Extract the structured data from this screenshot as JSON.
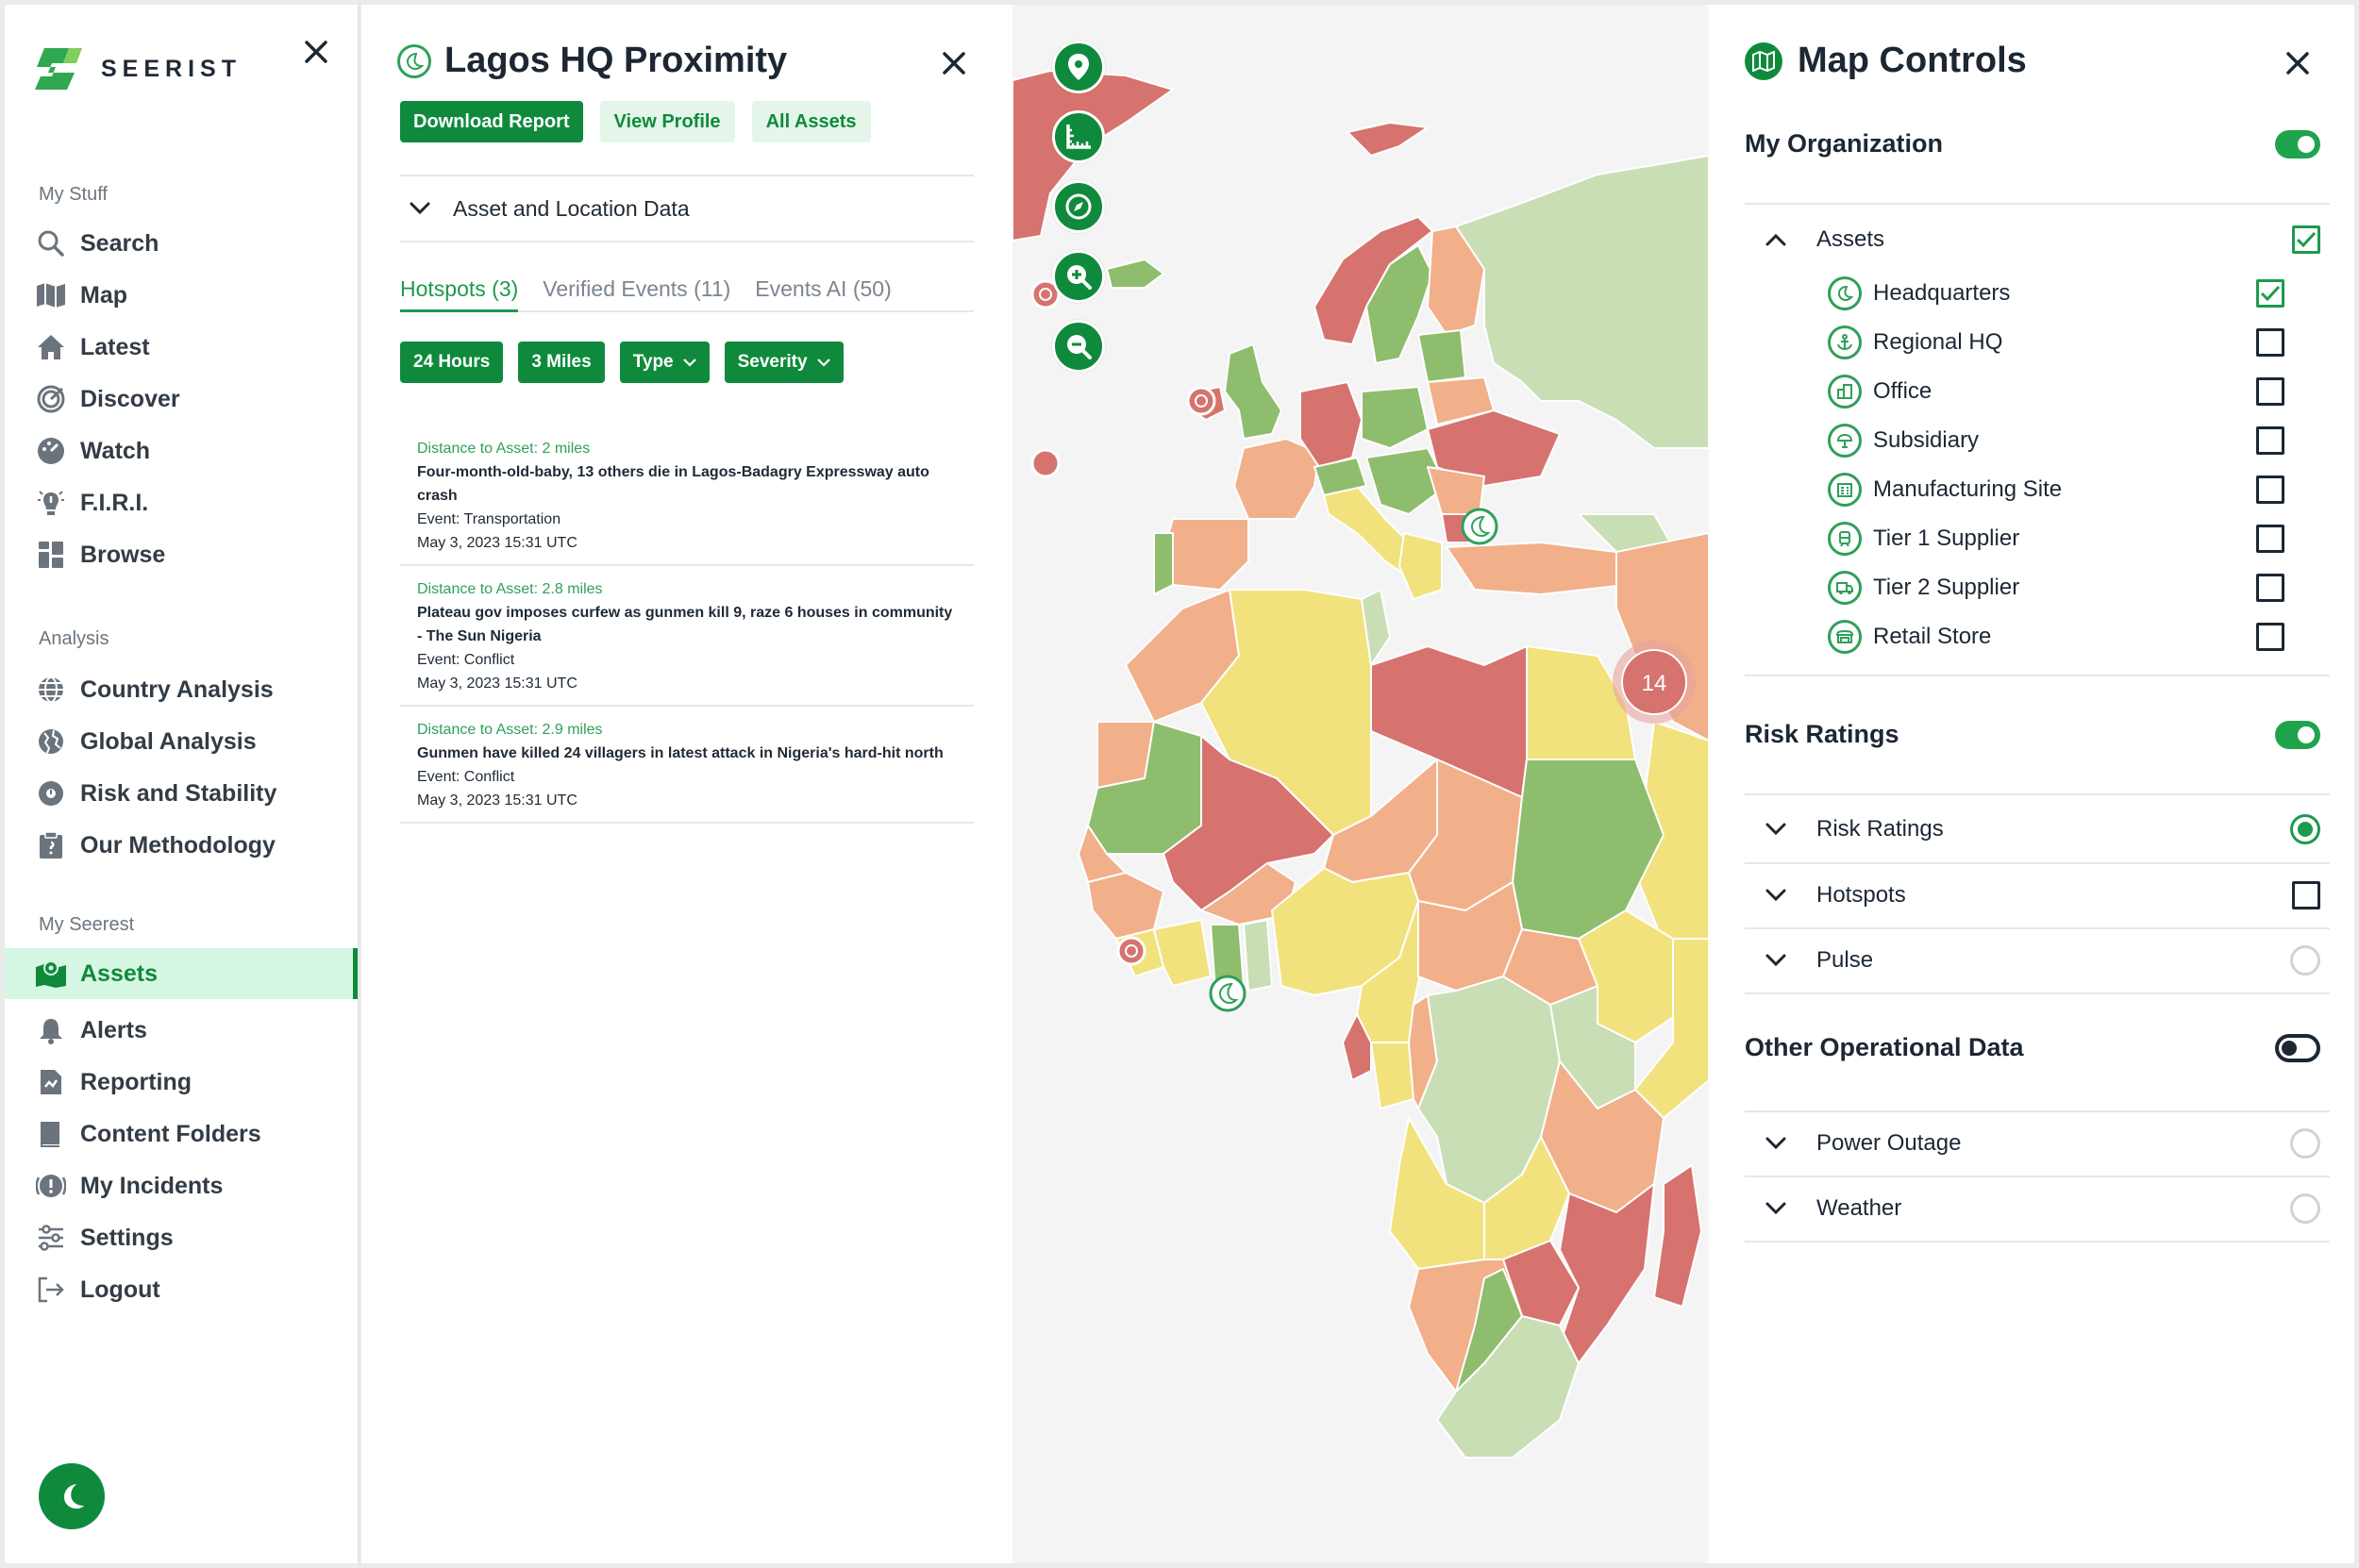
{
  "brand": {
    "name": "SEERIST"
  },
  "nav": {
    "sections": [
      {
        "title": "My Stuff",
        "items": [
          {
            "label": "Search",
            "icon": "search-icon"
          },
          {
            "label": "Map",
            "icon": "map-icon"
          },
          {
            "label": "Latest",
            "icon": "home-icon"
          },
          {
            "label": "Discover",
            "icon": "radar-icon"
          },
          {
            "label": "Watch",
            "icon": "dashboard-icon"
          },
          {
            "label": "F.I.R.I.",
            "icon": "alert-bulb-icon"
          },
          {
            "label": "Browse",
            "icon": "grid-icon"
          }
        ]
      },
      {
        "title": "Analysis",
        "items": [
          {
            "label": "Country Analysis",
            "icon": "globe-icon"
          },
          {
            "label": "Global Analysis",
            "icon": "globe-grid-icon"
          },
          {
            "label": "Risk and Stability",
            "icon": "globe-risk-icon"
          },
          {
            "label": "Our Methodology",
            "icon": "clipboard-icon"
          }
        ]
      },
      {
        "title": "My Seerest",
        "items": [
          {
            "label": "Assets",
            "icon": "assets-map-icon",
            "active": true
          },
          {
            "label": "Alerts",
            "icon": "bell-icon"
          },
          {
            "label": "Reporting",
            "icon": "report-icon"
          },
          {
            "label": "Content Folders",
            "icon": "folder-icon"
          },
          {
            "label": "My Incidents",
            "icon": "incident-icon"
          },
          {
            "label": "Settings",
            "icon": "sliders-icon"
          },
          {
            "label": "Logout",
            "icon": "logout-icon"
          }
        ]
      }
    ]
  },
  "detail": {
    "title": "Lagos HQ Proximity",
    "buttons": {
      "download": "Download Report",
      "profile": "View Profile",
      "assets": "All Assets"
    },
    "accordion": "Asset and Location Data",
    "tabs": [
      {
        "label": "Hotspots (3)",
        "active": true
      },
      {
        "label": "Verified Events (11)",
        "active": false
      },
      {
        "label": "Events AI (50)",
        "active": false
      }
    ],
    "filters": {
      "time": "24 Hours",
      "distance": "3 Miles",
      "type": "Type",
      "severity": "Severity"
    },
    "events": [
      {
        "distance": "Distance to Asset: 2 miles",
        "title": "Four-month-old-baby, 13 others die in Lagos-Badagry Expressway auto crash",
        "event": "Event: Transportation",
        "date": "May 3, 2023 15:31 UTC"
      },
      {
        "distance": "Distance to Asset: 2.8 miles",
        "title": "Plateau gov imposes curfew as gunmen kill 9, raze 6 houses in community - The Sun Nigeria",
        "event": "Event: Conflict",
        "date": "May 3, 2023 15:31 UTC"
      },
      {
        "distance": "Distance to Asset: 2.9 miles",
        "title": "Gunmen have killed 24 villagers in latest attack in Nigeria's hard-hit north",
        "event": "Event: Conflict",
        "date": "May 3, 2023 15:31 UTC"
      }
    ]
  },
  "map": {
    "cluster_count": "14",
    "tools": [
      "location-pin-icon",
      "ruler-icon",
      "compass-icon",
      "zoom-in-icon",
      "zoom-out-icon"
    ]
  },
  "controls": {
    "title": "Map Controls",
    "my_org": {
      "label": "My Organization",
      "enabled": true
    },
    "assets": {
      "label": "Assets",
      "checked": true,
      "items": [
        {
          "label": "Headquarters",
          "icon": "headquarters-icon",
          "checked": true
        },
        {
          "label": "Regional HQ",
          "icon": "anchor-icon",
          "checked": false
        },
        {
          "label": "Office",
          "icon": "office-icon",
          "checked": false
        },
        {
          "label": "Subsidiary",
          "icon": "subsidiary-icon",
          "checked": false
        },
        {
          "label": "Manufacturing Site",
          "icon": "factory-icon",
          "checked": false
        },
        {
          "label": "Tier 1 Supplier",
          "icon": "train-icon",
          "checked": false
        },
        {
          "label": "Tier 2 Supplier",
          "icon": "truck-icon",
          "checked": false
        },
        {
          "label": "Retail Store",
          "icon": "store-icon",
          "checked": false
        }
      ]
    },
    "risk": {
      "label": "Risk Ratings",
      "enabled": true,
      "rows": [
        {
          "label": "Risk Ratings",
          "control": "radio-on"
        },
        {
          "label": "Hotspots",
          "control": "checkbox"
        },
        {
          "label": "Pulse",
          "control": "radio-off"
        }
      ]
    },
    "other": {
      "label": "Other Operational Data",
      "enabled": false,
      "rows": [
        {
          "label": "Power Outage",
          "control": "radio-off"
        },
        {
          "label": "Weather",
          "control": "radio-off"
        }
      ]
    }
  },
  "colors": {
    "brand_green": "#0f8a3c",
    "light_green": "#e4f6ea",
    "risk_low": "#c9deb5",
    "risk_mid_low": "#8fbd6e",
    "risk_medium": "#f2e27e",
    "risk_elevated": "#f1b08a",
    "risk_high": "#d6736e"
  }
}
